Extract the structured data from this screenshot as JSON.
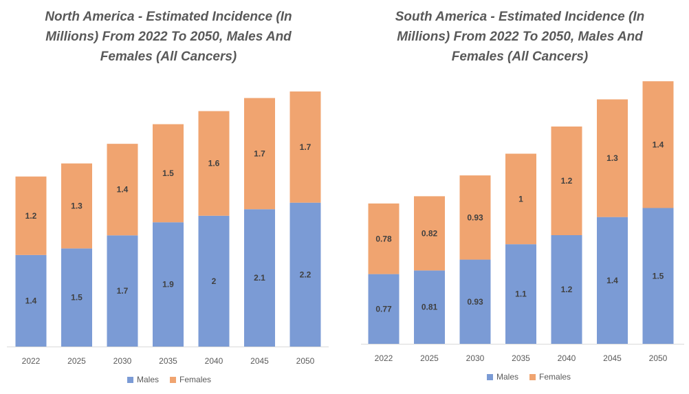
{
  "colors": {
    "males": "#7B9BD5",
    "females": "#F0A470",
    "axis": "#D9D9D9"
  },
  "chart_data": [
    {
      "type": "bar",
      "stacked": true,
      "title": "North America - Estimated Incidence (In Millions) From 2022 To 2050, Males And Females (All Cancers)",
      "categories": [
        "2022",
        "2025",
        "2030",
        "2035",
        "2040",
        "2045",
        "2050"
      ],
      "series": [
        {
          "name": "Males",
          "values": [
            1.4,
            1.5,
            1.7,
            1.9,
            2,
            2.1,
            2.2
          ],
          "labels": [
            "1.4",
            "1.5",
            "1.7",
            "1.9",
            "2",
            "2.1",
            "2.2"
          ]
        },
        {
          "name": "Females",
          "values": [
            1.2,
            1.3,
            1.4,
            1.5,
            1.6,
            1.7,
            1.7
          ],
          "labels": [
            "1.2",
            "1.3",
            "1.4",
            "1.5",
            "1.6",
            "1.7",
            "1.7"
          ]
        }
      ],
      "ylim": [
        0,
        4.3
      ],
      "legend": "bottom"
    },
    {
      "type": "bar",
      "stacked": true,
      "title": "South America - Estimated Incidence (In Millions) From 2022 To 2050, Males And Females (All Cancers)",
      "categories": [
        "2022",
        "2025",
        "2030",
        "2035",
        "2040",
        "2045",
        "2050"
      ],
      "series": [
        {
          "name": "Males",
          "values": [
            0.77,
            0.81,
            0.93,
            1.1,
            1.2,
            1.4,
            1.5
          ],
          "labels": [
            "0.77",
            "0.81",
            "0.93",
            "1.1",
            "1.2",
            "1.4",
            "1.5"
          ]
        },
        {
          "name": "Females",
          "values": [
            0.78,
            0.82,
            0.93,
            1,
            1.2,
            1.3,
            1.4
          ],
          "labels": [
            "0.78",
            "0.82",
            "0.93",
            "1",
            "1.2",
            "1.3",
            "1.4"
          ]
        }
      ],
      "ylim": [
        0,
        3.0
      ],
      "legend": "bottom"
    }
  ]
}
